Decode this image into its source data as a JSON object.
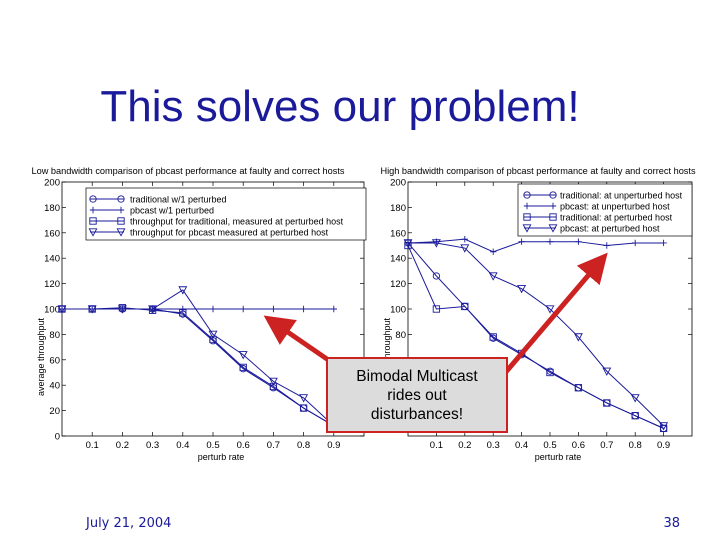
{
  "slide": {
    "title": "This solves our problem!",
    "footer_date": "July 21, 2004",
    "page_number": "38",
    "callout_text": "Bimodal Multicast\nrides out\ndisturbances!",
    "accent_color": "#1a1a9a",
    "arrow_color": "#cc2222"
  },
  "chart_data": [
    {
      "type": "line",
      "title": "Low bandwidth comparison of pbcast performance at faulty and correct hosts",
      "xlabel": "perturb rate",
      "ylabel": "average throughput",
      "xlim": [
        0,
        1
      ],
      "ylim": [
        0,
        200
      ],
      "xticks": [
        0.1,
        0.2,
        0.3,
        0.4,
        0.5,
        0.6,
        0.7,
        0.8,
        0.9
      ],
      "xtick_labels": [
        "0.1",
        "0.2",
        "0.3",
        "0.4",
        "0.5",
        "0.6",
        "0.7",
        "0.8",
        "0.9"
      ],
      "yticks": [
        0,
        20,
        40,
        60,
        80,
        100,
        120,
        140,
        160,
        180,
        200
      ],
      "ytick_labels": [
        "0",
        "20",
        "40",
        "60",
        "80",
        "100",
        "120",
        "140",
        "160",
        "180",
        "200"
      ],
      "legend_position": "top-right",
      "x": [
        0,
        0.1,
        0.2,
        0.3,
        0.4,
        0.5,
        0.6,
        0.7,
        0.8,
        0.9
      ],
      "series": [
        {
          "name": "traditional w/1 perturbed",
          "marker": "circle",
          "values": [
            100,
            100,
            100,
            100,
            96,
            75,
            53,
            38,
            22,
            8
          ]
        },
        {
          "name": "pbcast w/1 perturbed",
          "marker": "plus",
          "values": [
            100,
            100,
            100,
            100,
            100,
            100,
            100,
            100,
            100,
            100
          ]
        },
        {
          "name": "throughput for traditional, measured at perturbed host",
          "marker": "square",
          "values": [
            100,
            100,
            101,
            99,
            97,
            76,
            54,
            39,
            22,
            8
          ]
        },
        {
          "name": "throughput for pbcast measured at perturbed host",
          "marker": "triangle",
          "values": [
            100,
            100,
            100,
            100,
            115,
            80,
            64,
            43,
            30,
            8
          ]
        }
      ]
    },
    {
      "type": "line",
      "title": "High bandwidth comparison of pbcast performance at faulty and correct hosts",
      "xlabel": "perturb rate",
      "ylabel": "average throughput",
      "xlim": [
        0,
        1
      ],
      "ylim": [
        0,
        200
      ],
      "xticks": [
        0.1,
        0.2,
        0.3,
        0.4,
        0.5,
        0.6,
        0.7,
        0.8,
        0.9
      ],
      "xtick_labels": [
        "0.1",
        "0.2",
        "0.3",
        "0.4",
        "0.5",
        "0.6",
        "0.7",
        "0.8",
        "0.9"
      ],
      "yticks": [
        80,
        100,
        120,
        140,
        160,
        180,
        200
      ],
      "ytick_labels": [
        "80",
        "100",
        "120",
        "140",
        "160",
        "180",
        "200"
      ],
      "legend_position": "top-right",
      "x": [
        0,
        0.1,
        0.2,
        0.3,
        0.4,
        0.5,
        0.6,
        0.7,
        0.8,
        0.9
      ],
      "series": [
        {
          "name": "traditional: at unperturbed host",
          "marker": "circle",
          "values": [
            152,
            126,
            102,
            77,
            64,
            51,
            38,
            26,
            16,
            6
          ]
        },
        {
          "name": "pbcast: at unperturbed host",
          "marker": "plus",
          "values": [
            152,
            153,
            155,
            145,
            153,
            153,
            153,
            150,
            152,
            152
          ]
        },
        {
          "name": "traditional: at perturbed host",
          "marker": "square",
          "values": [
            150,
            100,
            102,
            78,
            65,
            50,
            38,
            26,
            16,
            6
          ]
        },
        {
          "name": "pbcast: at perturbed host",
          "marker": "triangle",
          "values": [
            152,
            152,
            148,
            126,
            116,
            100,
            78,
            51,
            30,
            8
          ]
        }
      ]
    }
  ]
}
